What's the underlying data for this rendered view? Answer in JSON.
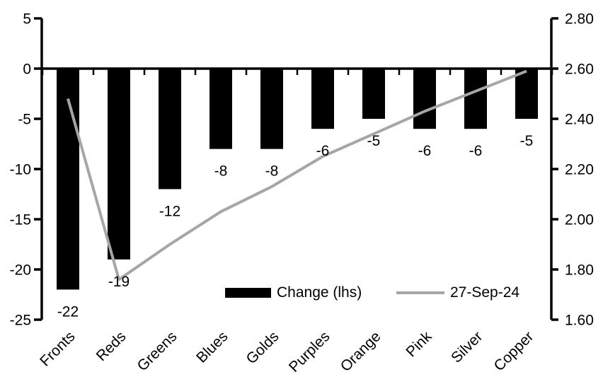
{
  "chart_data": {
    "type": "bar",
    "subtype": "combo-bar-line-dual-axis",
    "title": "",
    "categories": [
      "Fronts",
      "Reds",
      "Greens",
      "Blues",
      "Golds",
      "Purples",
      "Orange",
      "Pink",
      "Silver",
      "Copper"
    ],
    "series": [
      {
        "name": "Change (lhs)",
        "type": "bar",
        "axis": "left",
        "color": "#000000",
        "values": [
          -22,
          -19,
          -12,
          -8,
          -8,
          -6,
          -5,
          -6,
          -6,
          -5
        ],
        "data_labels": [
          "-22",
          "-19",
          "-12",
          "-8",
          "-8",
          "-6",
          "-5",
          "-6",
          "-6",
          "-5"
        ]
      },
      {
        "name": "27-Sep-24",
        "type": "line",
        "axis": "right",
        "color": "#A6A6A6",
        "values": [
          2.48,
          1.76,
          1.9,
          2.03,
          2.13,
          2.25,
          2.34,
          2.43,
          2.51,
          2.59
        ]
      }
    ],
    "left_axis": {
      "min": -25,
      "max": 5,
      "tick_values": [
        5,
        0,
        -5,
        -10,
        -15,
        -20,
        -25
      ],
      "tick_labels": [
        "5",
        "0",
        "-5",
        "-10",
        "-15",
        "-20",
        "-25"
      ]
    },
    "right_axis": {
      "min": 1.6,
      "max": 2.8,
      "tick_values": [
        2.8,
        2.6,
        2.4,
        2.2,
        2.0,
        1.8,
        1.6
      ],
      "tick_labels": [
        "2.80",
        "2.60",
        "2.40",
        "2.20",
        "2.00",
        "1.80",
        "1.60"
      ]
    },
    "legend": {
      "position": "inside-bottom",
      "entries": [
        "Change (lhs)",
        "27-Sep-24"
      ]
    },
    "grid": false,
    "axis_color": "#000000",
    "text_color": "#000000",
    "background": "#FFFFFF"
  }
}
